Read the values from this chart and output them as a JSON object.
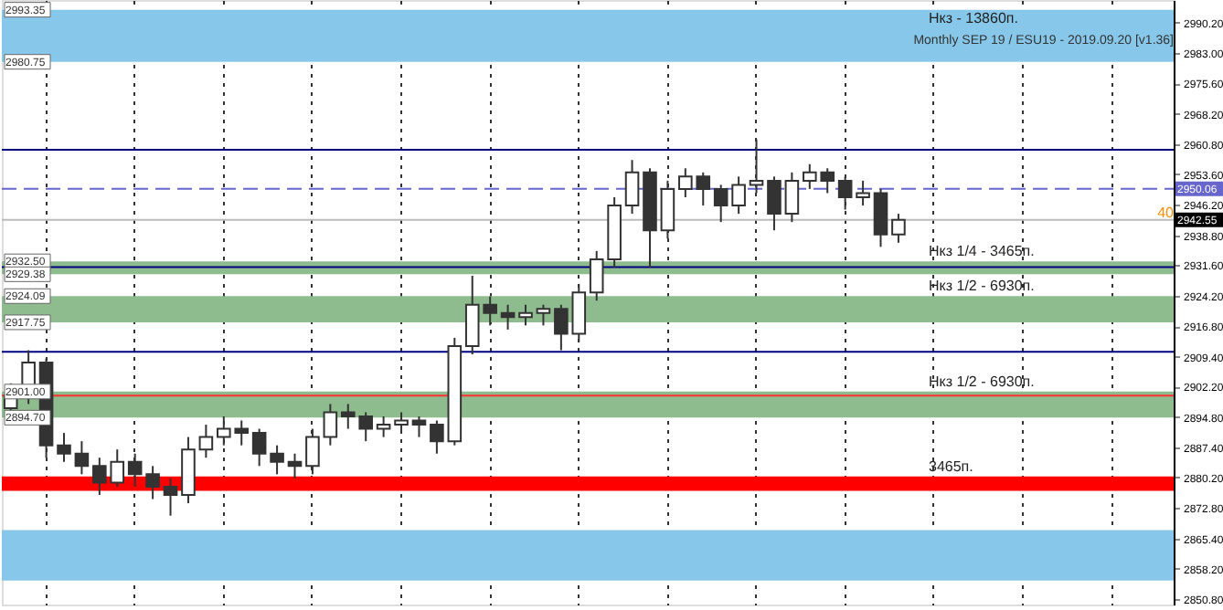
{
  "chart_data": {
    "type": "candlestick",
    "title": "Monthly SEP 19 / ESU19 - 2019.09.20 [v1.36]",
    "categories": [
      null,
      null,
      null,
      null,
      null,
      null,
      null,
      null,
      null,
      null,
      null,
      null,
      null,
      null,
      null,
      null,
      null,
      null,
      null,
      null,
      null,
      null,
      null,
      null,
      null,
      null,
      null,
      null,
      null,
      null,
      null,
      null,
      null,
      null,
      null,
      null,
      null,
      null,
      null,
      null,
      null,
      null,
      null,
      null,
      null,
      null,
      null,
      null,
      null,
      null,
      null,
      null,
      null,
      null,
      null,
      null,
      null,
      null,
      null,
      null,
      null,
      null,
      null,
      null,
      null,
      null
    ],
    "ohlc": [
      [
        2897,
        2903,
        2895,
        2900
      ],
      [
        2900,
        2911,
        2898,
        2908
      ],
      [
        2908,
        2909,
        2885,
        2888
      ],
      [
        2888,
        2891,
        2884,
        2886
      ],
      [
        2886,
        2889,
        2881,
        2883
      ],
      [
        2883,
        2885,
        2876,
        2879
      ],
      [
        2879,
        2887,
        2878,
        2884
      ],
      [
        2884,
        2886,
        2878,
        2881
      ],
      [
        2881,
        2883,
        2875,
        2878
      ],
      [
        2878,
        2880,
        2871,
        2876
      ],
      [
        2876,
        2890,
        2874,
        2887
      ],
      [
        2887,
        2893,
        2885,
        2890
      ],
      [
        2890,
        2895,
        2888,
        2892
      ],
      [
        2892,
        2894,
        2888,
        2891
      ],
      [
        2891,
        2892,
        2883,
        2886
      ],
      [
        2886,
        2888,
        2881,
        2884
      ],
      [
        2884,
        2886,
        2880,
        2883
      ],
      [
        2883,
        2892,
        2881,
        2890
      ],
      [
        2890,
        2898,
        2888,
        2896
      ],
      [
        2896,
        2898,
        2892,
        2895
      ],
      [
        2895,
        2896,
        2889,
        2892
      ],
      [
        2892,
        2895,
        2890,
        2893
      ],
      [
        2893,
        2896,
        2891,
        2894
      ],
      [
        2894,
        2895,
        2890,
        2893
      ],
      [
        2893,
        2894,
        2886,
        2889
      ],
      [
        2889,
        2914,
        2888,
        2912
      ],
      [
        2912,
        2929,
        2910,
        2922
      ],
      [
        2922,
        2924,
        2917,
        2920
      ],
      [
        2920,
        2922,
        2916,
        2919
      ],
      [
        2919,
        2922,
        2917,
        2920
      ],
      [
        2920,
        2922,
        2917,
        2921
      ],
      [
        2921,
        2922,
        2911,
        2915
      ],
      [
        2915,
        2927,
        2913,
        2925
      ],
      [
        2925,
        2935,
        2923,
        2933
      ],
      [
        2933,
        2948,
        2931,
        2946
      ],
      [
        2946,
        2957,
        2944,
        2954
      ],
      [
        2954,
        2955,
        2931,
        2940
      ],
      [
        2940,
        2952,
        2938,
        2950
      ],
      [
        2950,
        2955,
        2948,
        2953
      ],
      [
        2953,
        2954,
        2946,
        2950
      ],
      [
        2950,
        2951,
        2942,
        2946
      ],
      [
        2946,
        2953,
        2944,
        2951
      ],
      [
        2951,
        2962,
        2949,
        2952
      ],
      [
        2952,
        2953,
        2940,
        2944
      ],
      [
        2944,
        2954,
        2942,
        2952
      ],
      [
        2952,
        2956,
        2950,
        2954
      ],
      [
        2954,
        2955,
        2949,
        2952
      ],
      [
        2952,
        2953,
        2945,
        2948
      ],
      [
        2948,
        2952,
        2946,
        2949
      ],
      [
        2949,
        2950,
        2936,
        2939
      ],
      [
        2939,
        2944,
        2937,
        2942.55
      ],
      null,
      null,
      null,
      null,
      null,
      null,
      null,
      null,
      null,
      null,
      null,
      null,
      null,
      null,
      null
    ],
    "color": "#333333",
    "ylim": [
      2849.5,
      2995.7
    ],
    "yticks": [
      {
        "value": 2990.2,
        "label": "2990.20"
      },
      {
        "value": 2983.0,
        "label": "2983.00"
      },
      {
        "value": 2975.6,
        "label": "2975.60"
      },
      {
        "value": 2968.2,
        "label": "2968.20"
      },
      {
        "value": 2960.8,
        "label": "2960.80"
      },
      {
        "value": 2953.6,
        "label": "2953.60"
      },
      {
        "value": 2946.2,
        "label": "2946.20"
      },
      {
        "value": 2938.8,
        "label": "2938.80"
      },
      {
        "value": 2931.6,
        "label": "2931.60"
      },
      {
        "value": 2924.2,
        "label": "2924.20"
      },
      {
        "value": 2916.8,
        "label": "2916.80"
      },
      {
        "value": 2909.4,
        "label": "2909.40"
      },
      {
        "value": 2902.2,
        "label": "2902.20"
      },
      {
        "value": 2894.8,
        "label": "2894.80"
      },
      {
        "value": 2887.4,
        "label": "2887.40"
      },
      {
        "value": 2880.2,
        "label": "2880.20"
      },
      {
        "value": 2872.8,
        "label": "2872.80"
      },
      {
        "value": 2865.4,
        "label": "2865.40"
      },
      {
        "value": 2858.2,
        "label": "2858.20"
      },
      {
        "value": 2850.8,
        "label": "2850.80"
      }
    ],
    "tick_labels": "y",
    "grid": "x",
    "bands": [
      {
        "axis": "y",
        "from": 2980.75,
        "to": 2993.35,
        "label": "Нкз - 13860п.",
        "color": "#87c8ea"
      },
      {
        "axis": "y",
        "from": 2917.75,
        "to": 2924.09,
        "label": "Нкз 1/2 - 6930п.",
        "color": "#8fbc8f"
      },
      {
        "axis": "y",
        "from": 2929.38,
        "to": 2932.5,
        "label": "Нкз 1/4 - 3465п.",
        "color": "#8fbc8f"
      },
      {
        "axis": "y",
        "from": 2894.7,
        "to": 2901.0,
        "label": "Нкз 1/2 - 6930п.",
        "color": "#8fbc8f"
      },
      {
        "axis": "y",
        "from": 2877.0,
        "to": 2880.5,
        "label": "3465п.",
        "color": "#ff0000"
      },
      {
        "axis": "y",
        "from": 2855.3,
        "to": 2867.5,
        "label": null,
        "color": "#87c8ea"
      }
    ],
    "ref_lines": [
      {
        "axis": "y",
        "value": 2950.06,
        "label": "2950.06",
        "color": "#6666cc",
        "line_style": "dashed"
      },
      {
        "axis": "y",
        "value": 2942.55,
        "label": "2942.55",
        "color": "#bbbbbb",
        "line_style": "solid"
      },
      {
        "axis": "y",
        "value": 2959.5,
        "label": null,
        "color": "#000080",
        "line_style": "solid"
      },
      {
        "axis": "y",
        "value": 2931.1,
        "label": null,
        "color": "#000080",
        "line_style": "solid"
      },
      {
        "axis": "y",
        "value": 2910.6,
        "label": null,
        "color": "#000080",
        "line_style": "solid"
      },
      {
        "axis": "y",
        "value": 2900.0,
        "label": null,
        "color": "#ff3333",
        "line_style": "solid"
      }
    ],
    "annotations": [
      {
        "text": "2993.35",
        "y": 2993.35
      },
      {
        "text": "2980.75",
        "y": 2980.75
      },
      {
        "text": "2924.09",
        "y": 2924.09
      },
      {
        "text": "2917.75",
        "y": 2917.75
      },
      {
        "text": "2932.50",
        "y": 2932.5
      },
      {
        "text": "2929.38",
        "y": 2929.38
      },
      {
        "text": "2901.00",
        "y": 2901.0
      },
      {
        "text": "2894.70",
        "y": 2894.7
      },
      "40"
    ]
  }
}
